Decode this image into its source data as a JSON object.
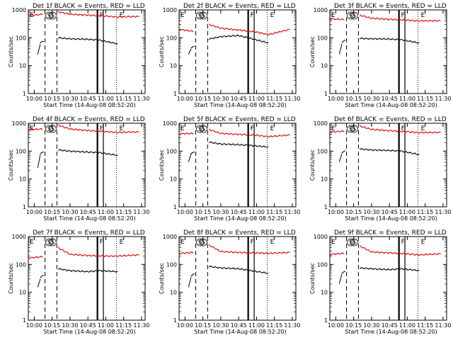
{
  "colors": {
    "events": "#000000",
    "lld": "#e00000",
    "axis": "#000000",
    "background": "#ffffff"
  },
  "common": {
    "xlabel": "Start Time (14-Aug-08 08:52:20)",
    "ylabel": "Counts/sec",
    "x_ticks": [
      "10:00",
      "10:15",
      "10:30",
      "10:45",
      "11:00",
      "11:15",
      "11:30"
    ],
    "y_ticks": [
      "1000",
      "100",
      "10",
      "1"
    ],
    "marker_S": "S",
    "marker_F": "F",
    "marker_E": "E"
  },
  "chart_data": [
    {
      "type": "line",
      "title": "Det 1f BLACK = Events, RED = LLD",
      "xlabel": "Start Time (14-Aug-08 08:52:20)",
      "ylabel": "Counts/sec",
      "ylim": [
        1,
        1000
      ],
      "y_scale": "log",
      "series": [
        {
          "name": "Events",
          "color": "#000000",
          "segments": [
            {
              "x": [
                "10:03",
                "10:05"
              ],
              "y": [
                25,
                60
              ]
            },
            {
              "x": [
                "10:05",
                "10:08"
              ],
              "y": [
                70,
                72
              ]
            },
            {
              "x": [
                "10:20",
                "10:30",
                "10:45",
                "10:55",
                "11:10"
              ],
              "y": [
                100,
                92,
                88,
                82,
                60
              ]
            }
          ]
        },
        {
          "name": "LLD",
          "color": "#e00000",
          "segments": [
            {
              "x": [
                "09:55",
                "10:07"
              ],
              "y": [
                620,
                700
              ]
            },
            {
              "x": [
                "10:20",
                "10:30",
                "10:45",
                "11:00",
                "11:10",
                "11:28"
              ],
              "y": [
                850,
                700,
                650,
                600,
                560,
                580
              ]
            }
          ]
        }
      ]
    },
    {
      "type": "line",
      "title": "Det 2f BLACK = Events, RED = LLD",
      "xlabel": "Start Time (14-Aug-08 08:52:20)",
      "ylabel": "Counts/sec",
      "ylim": [
        1,
        1000
      ],
      "y_scale": "log",
      "series": [
        {
          "name": "Events",
          "color": "#000000",
          "segments": [
            {
              "x": [
                "10:03",
                "10:05"
              ],
              "y": [
                25,
                40
              ]
            },
            {
              "x": [
                "10:05",
                "10:08"
              ],
              "y": [
                45,
                48
              ]
            },
            {
              "x": [
                "10:20",
                "10:30",
                "10:45",
                "10:55",
                "11:10"
              ],
              "y": [
                90,
                110,
                120,
                95,
                65
              ]
            }
          ]
        },
        {
          "name": "LLD",
          "color": "#e00000",
          "segments": [
            {
              "x": [
                "09:55",
                "10:07"
              ],
              "y": [
                200,
                170
              ]
            },
            {
              "x": [
                "10:20",
                "10:30",
                "10:45",
                "11:00",
                "11:10",
                "11:28"
              ],
              "y": [
                300,
                220,
                190,
                160,
                130,
                200
              ]
            }
          ]
        }
      ]
    },
    {
      "type": "line",
      "title": "Det 3f BLACK = Events, RED = LLD",
      "xlabel": "Start Time (14-Aug-08 08:52:20)",
      "ylabel": "Counts/sec",
      "ylim": [
        1,
        1000
      ],
      "y_scale": "log",
      "series": [
        {
          "name": "Events",
          "color": "#000000",
          "segments": [
            {
              "x": [
                "10:03",
                "10:05"
              ],
              "y": [
                25,
                60
              ]
            },
            {
              "x": [
                "10:05",
                "10:08"
              ],
              "y": [
                70,
                80
              ]
            },
            {
              "x": [
                "10:20",
                "10:30",
                "10:45",
                "10:55",
                "11:10"
              ],
              "y": [
                95,
                92,
                90,
                85,
                65
              ]
            }
          ]
        },
        {
          "name": "LLD",
          "color": "#e00000",
          "segments": [
            {
              "x": [
                "09:55",
                "10:07"
              ],
              "y": [
                480,
                450
              ]
            },
            {
              "x": [
                "10:20",
                "10:30",
                "10:45",
                "11:00",
                "11:10",
                "11:28"
              ],
              "y": [
                650,
                500,
                460,
                430,
                400,
                410
              ]
            }
          ]
        }
      ]
    },
    {
      "type": "line",
      "title": "Det 4f BLACK = Events, RED = LLD",
      "xlabel": "Start Time (14-Aug-08 08:52:20)",
      "ylabel": "Counts/sec",
      "ylim": [
        1,
        1000
      ],
      "y_scale": "log",
      "series": [
        {
          "name": "Events",
          "color": "#000000",
          "segments": [
            {
              "x": [
                "10:03",
                "10:05"
              ],
              "y": [
                25,
                75
              ]
            },
            {
              "x": [
                "10:05",
                "10:08"
              ],
              "y": [
                85,
                90
              ]
            },
            {
              "x": [
                "10:20",
                "10:30",
                "10:45",
                "10:55",
                "11:10"
              ],
              "y": [
                110,
                100,
                92,
                88,
                70
              ]
            }
          ]
        },
        {
          "name": "LLD",
          "color": "#e00000",
          "segments": [
            {
              "x": [
                "09:55",
                "10:07"
              ],
              "y": [
                600,
                620
              ]
            },
            {
              "x": [
                "10:20",
                "10:30",
                "10:45",
                "11:00",
                "11:10",
                "11:28"
              ],
              "y": [
                850,
                620,
                550,
                500,
                470,
                490
              ]
            }
          ]
        }
      ]
    },
    {
      "type": "line",
      "title": "Det 5f BLACK = Events, RED = LLD",
      "xlabel": "Start Time (14-Aug-08 08:52:20)",
      "ylabel": "Counts/sec",
      "ylim": [
        1,
        1000
      ],
      "y_scale": "log",
      "series": [
        {
          "name": "Events",
          "color": "#000000",
          "segments": [
            {
              "x": [
                "10:03",
                "10:05"
              ],
              "y": [
                40,
                80
              ]
            },
            {
              "x": [
                "10:05",
                "10:08"
              ],
              "y": [
                85,
                90
              ]
            },
            {
              "x": [
                "10:20",
                "10:30",
                "10:45",
                "10:55",
                "11:10"
              ],
              "y": [
                210,
                180,
                170,
                160,
                140
              ]
            }
          ]
        },
        {
          "name": "LLD",
          "color": "#e00000",
          "segments": [
            {
              "x": [
                "09:55",
                "10:07"
              ],
              "y": [
                420,
                430
              ]
            },
            {
              "x": [
                "10:20",
                "10:30",
                "10:45",
                "11:00",
                "11:10",
                "11:28"
              ],
              "y": [
                600,
                430,
                400,
                370,
                330,
                380
              ]
            }
          ]
        }
      ]
    },
    {
      "type": "line",
      "title": "Det 6f BLACK = Events, RED = LLD",
      "xlabel": "Start Time (14-Aug-08 08:52:20)",
      "ylabel": "Counts/sec",
      "ylim": [
        1,
        1000
      ],
      "y_scale": "log",
      "series": [
        {
          "name": "Events",
          "color": "#000000",
          "segments": [
            {
              "x": [
                "10:03",
                "10:05"
              ],
              "y": [
                40,
                80
              ]
            },
            {
              "x": [
                "10:05",
                "10:08"
              ],
              "y": [
                90,
                100
              ]
            },
            {
              "x": [
                "10:20",
                "10:30",
                "10:45",
                "10:55",
                "11:10"
              ],
              "y": [
                120,
                110,
                105,
                100,
                75
              ]
            }
          ]
        },
        {
          "name": "LLD",
          "color": "#e00000",
          "segments": [
            {
              "x": [
                "09:55",
                "10:07"
              ],
              "y": [
                480,
                520
              ]
            },
            {
              "x": [
                "10:20",
                "10:30",
                "10:45",
                "11:00",
                "11:10",
                "11:28"
              ],
              "y": [
                800,
                600,
                540,
                500,
                460,
                470
              ]
            }
          ]
        }
      ]
    },
    {
      "type": "line",
      "title": "Det 7f BLACK = Events, RED = LLD",
      "xlabel": "Start Time (14-Aug-08 08:52:20)",
      "ylabel": "Counts/sec",
      "ylim": [
        1,
        1000
      ],
      "y_scale": "log",
      "series": [
        {
          "name": "Events",
          "color": "#000000",
          "segments": [
            {
              "x": [
                "10:03",
                "10:05"
              ],
              "y": [
                15,
                30
              ]
            },
            {
              "x": [
                "10:05",
                "10:08"
              ],
              "y": [
                35,
                40
              ]
            },
            {
              "x": [
                "10:20",
                "10:30",
                "10:45",
                "10:55",
                "11:10"
              ],
              "y": [
                70,
                60,
                55,
                60,
                55
              ]
            }
          ]
        },
        {
          "name": "LLD",
          "color": "#e00000",
          "segments": [
            {
              "x": [
                "09:55",
                "10:07"
              ],
              "y": [
                170,
                190
              ]
            },
            {
              "x": [
                "10:20",
                "10:30",
                "10:45",
                "11:00",
                "11:10",
                "11:28"
              ],
              "y": [
                400,
                230,
                210,
                200,
                200,
                220
              ]
            }
          ]
        }
      ]
    },
    {
      "type": "line",
      "title": "Det 8f BLACK = Events, RED = LLD",
      "xlabel": "Start Time (14-Aug-08 08:52:20)",
      "ylabel": "Counts/sec",
      "ylim": [
        1,
        1000
      ],
      "y_scale": "log",
      "series": [
        {
          "name": "Events",
          "color": "#000000",
          "segments": [
            {
              "x": [
                "10:03",
                "10:05"
              ],
              "y": [
                15,
                35
              ]
            },
            {
              "x": [
                "10:05",
                "10:08"
              ],
              "y": [
                40,
                45
              ]
            },
            {
              "x": [
                "10:20",
                "10:30",
                "10:45",
                "10:55",
                "11:10"
              ],
              "y": [
                85,
                75,
                70,
                60,
                48
              ]
            }
          ]
        },
        {
          "name": "LLD",
          "color": "#e00000",
          "segments": [
            {
              "x": [
                "09:55",
                "10:07"
              ],
              "y": [
                250,
                270
              ]
            },
            {
              "x": [
                "10:20",
                "10:30",
                "10:45",
                "11:00",
                "11:10",
                "11:28"
              ],
              "y": [
                500,
                290,
                270,
                260,
                250,
                270
              ]
            }
          ]
        }
      ]
    },
    {
      "type": "line",
      "title": "Det 9f BLACK = Events, RED = LLD",
      "xlabel": "Start Time (14-Aug-08 08:52:20)",
      "ylabel": "Counts/sec",
      "ylim": [
        1,
        1000
      ],
      "y_scale": "log",
      "series": [
        {
          "name": "Events",
          "color": "#000000",
          "segments": [
            {
              "x": [
                "10:03",
                "10:05"
              ],
              "y": [
                20,
                45
              ]
            },
            {
              "x": [
                "10:05",
                "10:08"
              ],
              "y": [
                50,
                55
              ]
            },
            {
              "x": [
                "10:20",
                "10:30",
                "10:45",
                "10:55",
                "11:10"
              ],
              "y": [
                75,
                70,
                65,
                70,
                60
              ]
            }
          ]
        },
        {
          "name": "LLD",
          "color": "#e00000",
          "segments": [
            {
              "x": [
                "09:55",
                "10:07"
              ],
              "y": [
                230,
                250
              ]
            },
            {
              "x": [
                "10:20",
                "10:30",
                "10:45",
                "11:00",
                "11:10",
                "11:28"
              ],
              "y": [
                460,
                280,
                260,
                240,
                220,
                240
              ]
            }
          ]
        }
      ]
    }
  ]
}
